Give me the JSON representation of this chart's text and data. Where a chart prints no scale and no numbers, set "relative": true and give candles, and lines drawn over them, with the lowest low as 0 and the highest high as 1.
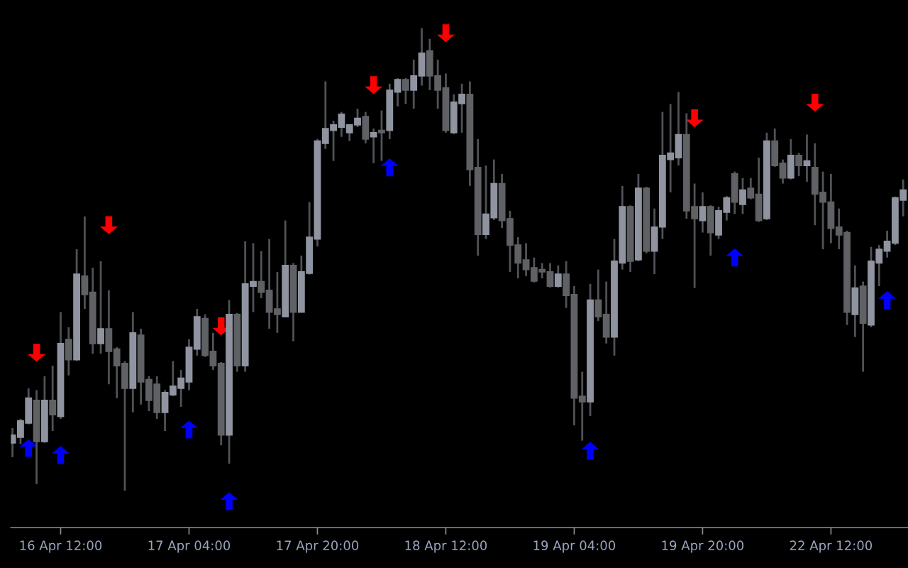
{
  "chart_data": {
    "type": "candlestick",
    "relative": true,
    "tick_labels": "x",
    "categories": [
      null,
      null,
      null,
      null,
      null,
      null,
      "16 Apr 12:00",
      null,
      null,
      null,
      null,
      null,
      null,
      null,
      null,
      null,
      null,
      null,
      null,
      null,
      null,
      null,
      "17 Apr 04:00",
      null,
      null,
      null,
      null,
      null,
      null,
      null,
      null,
      null,
      null,
      null,
      null,
      null,
      null,
      null,
      "17 Apr 20:00",
      null,
      null,
      null,
      null,
      null,
      null,
      null,
      null,
      null,
      null,
      null,
      null,
      null,
      null,
      null,
      "18 Apr 12:00",
      null,
      null,
      null,
      null,
      null,
      null,
      null,
      null,
      null,
      null,
      null,
      null,
      null,
      null,
      null,
      "19 Apr 04:00",
      null,
      null,
      null,
      null,
      null,
      null,
      null,
      null,
      null,
      null,
      null,
      null,
      null,
      null,
      null,
      "19 Apr 20:00",
      null,
      null,
      null,
      null,
      null,
      null,
      null,
      null,
      null,
      null,
      null,
      null,
      null,
      null,
      null,
      "22 Apr 12:00",
      null,
      null,
      null,
      null,
      null,
      null,
      null,
      null,
      null
    ],
    "series": [
      {
        "type": "candlestick",
        "ohlc": [
          [
            0.103,
            0.135,
            0.072,
            0.12
          ],
          [
            0.115,
            0.155,
            0.101,
            0.151
          ],
          [
            0.146,
            0.221,
            0.143,
            0.2
          ],
          [
            0.195,
            0.217,
            0.014,
            0.106
          ],
          [
            0.106,
            0.247,
            0.103,
            0.195
          ],
          [
            0.195,
            0.27,
            0.129,
            0.164
          ],
          [
            0.16,
            0.386,
            0.155,
            0.318
          ],
          [
            0.327,
            0.353,
            0.249,
            0.283
          ],
          [
            0.283,
            0.522,
            0.28,
            0.468
          ],
          [
            0.464,
            0.593,
            0.393,
            0.424
          ],
          [
            0.429,
            0.482,
            0.296,
            0.318
          ],
          [
            0.318,
            0.496,
            0.296,
            0.35
          ],
          [
            0.35,
            0.433,
            0.23,
            0.301
          ],
          [
            0.306,
            0.31,
            0.2,
            0.27
          ],
          [
            0.275,
            0.28,
            0.0,
            0.221
          ],
          [
            0.221,
            0.386,
            0.169,
            0.341
          ],
          [
            0.336,
            0.35,
            0.186,
            0.235
          ],
          [
            0.24,
            0.247,
            0.172,
            0.195
          ],
          [
            0.23,
            0.247,
            0.155,
            0.169
          ],
          [
            0.169,
            0.217,
            0.129,
            0.212
          ],
          [
            0.207,
            0.28,
            0.204,
            0.226
          ],
          [
            0.221,
            0.261,
            0.181,
            0.243
          ],
          [
            0.235,
            0.327,
            0.217,
            0.31
          ],
          [
            0.306,
            0.393,
            0.292,
            0.376
          ],
          [
            0.372,
            0.381,
            0.289,
            0.292
          ],
          [
            0.301,
            0.341,
            0.261,
            0.27
          ],
          [
            0.275,
            0.278,
            0.098,
            0.12
          ],
          [
            0.12,
            0.412,
            0.058,
            0.381
          ],
          [
            0.381,
            0.384,
            0.257,
            0.27
          ],
          [
            0.27,
            0.539,
            0.257,
            0.447
          ],
          [
            0.442,
            0.535,
            0.386,
            0.452
          ],
          [
            0.452,
            0.518,
            0.416,
            0.429
          ],
          [
            0.433,
            0.544,
            0.35,
            0.386
          ],
          [
            0.393,
            0.473,
            0.341,
            0.381
          ],
          [
            0.376,
            0.584,
            0.376,
            0.487
          ],
          [
            0.487,
            0.492,
            0.323,
            0.386
          ],
          [
            0.386,
            0.508,
            0.386,
            0.473
          ],
          [
            0.47,
            0.624,
            0.467,
            0.548
          ],
          [
            0.544,
            0.76,
            0.528,
            0.756
          ],
          [
            0.751,
            0.885,
            0.739,
            0.783
          ],
          [
            0.779,
            0.8,
            0.713,
            0.791
          ],
          [
            0.786,
            0.819,
            0.765,
            0.814
          ],
          [
            0.774,
            0.791,
            0.756,
            0.791
          ],
          [
            0.791,
            0.826,
            0.786,
            0.805
          ],
          [
            0.809,
            0.819,
            0.751,
            0.76
          ],
          [
            0.765,
            0.783,
            0.708,
            0.774
          ],
          [
            0.779,
            0.822,
            0.713,
            0.774
          ],
          [
            0.779,
            0.88,
            0.76,
            0.866
          ],
          [
            0.862,
            0.892,
            0.831,
            0.889
          ],
          [
            0.889,
            0.892,
            0.836,
            0.866
          ],
          [
            0.866,
            0.932,
            0.826,
            0.897
          ],
          [
            0.897,
            1.0,
            0.876,
            0.946
          ],
          [
            0.951,
            0.977,
            0.866,
            0.897
          ],
          [
            0.897,
            0.932,
            0.826,
            0.866
          ],
          [
            0.871,
            0.902,
            0.774,
            0.779
          ],
          [
            0.774,
            0.857,
            0.771,
            0.84
          ],
          [
            0.837,
            0.88,
            0.774,
            0.857
          ],
          [
            0.857,
            0.885,
            0.659,
            0.694
          ],
          [
            0.699,
            0.76,
            0.508,
            0.554
          ],
          [
            0.554,
            0.703,
            0.544,
            0.598
          ],
          [
            0.59,
            0.716,
            0.585,
            0.664
          ],
          [
            0.664,
            0.685,
            0.568,
            0.584
          ],
          [
            0.588,
            0.605,
            0.473,
            0.531
          ],
          [
            0.531,
            0.548,
            0.459,
            0.492
          ],
          [
            0.499,
            0.535,
            0.464,
            0.478
          ],
          [
            0.482,
            0.504,
            0.45,
            0.453
          ],
          [
            0.478,
            0.492,
            0.459,
            0.473
          ],
          [
            0.473,
            0.492,
            0.439,
            0.442
          ],
          [
            0.442,
            0.487,
            0.439,
            0.468
          ],
          [
            0.468,
            0.496,
            0.395,
            0.422
          ],
          [
            0.424,
            0.442,
            0.141,
            0.2
          ],
          [
            0.204,
            0.257,
            0.108,
            0.192
          ],
          [
            0.192,
            0.447,
            0.161,
            0.412
          ],
          [
            0.412,
            0.478,
            0.367,
            0.376
          ],
          [
            0.381,
            0.452,
            0.318,
            0.332
          ],
          [
            0.332,
            0.544,
            0.292,
            0.496
          ],
          [
            0.492,
            0.659,
            0.478,
            0.614
          ],
          [
            0.614,
            0.617,
            0.473,
            0.496
          ],
          [
            0.499,
            0.685,
            0.496,
            0.654
          ],
          [
            0.654,
            0.657,
            0.513,
            0.518
          ],
          [
            0.518,
            0.61,
            0.468,
            0.57
          ],
          [
            0.57,
            0.819,
            0.544,
            0.725
          ],
          [
            0.716,
            0.836,
            0.645,
            0.73
          ],
          [
            0.72,
            0.862,
            0.703,
            0.77
          ],
          [
            0.77,
            0.816,
            0.588,
            0.605
          ],
          [
            0.614,
            0.664,
            0.438,
            0.588
          ],
          [
            0.584,
            0.645,
            0.558,
            0.614
          ],
          [
            0.614,
            0.617,
            0.508,
            0.558
          ],
          [
            0.553,
            0.614,
            0.544,
            0.605
          ],
          [
            0.602,
            0.637,
            0.584,
            0.633
          ],
          [
            0.685,
            0.69,
            0.598,
            0.624
          ],
          [
            0.619,
            0.676,
            0.598,
            0.65
          ],
          [
            0.654,
            0.676,
            0.63,
            0.633
          ],
          [
            0.641,
            0.72,
            0.581,
            0.584
          ],
          [
            0.588,
            0.774,
            0.585,
            0.756
          ],
          [
            0.756,
            0.783,
            0.7,
            0.703
          ],
          [
            0.708,
            0.716,
            0.664,
            0.676
          ],
          [
            0.676,
            0.76,
            0.673,
            0.725
          ],
          [
            0.725,
            0.73,
            0.68,
            0.703
          ],
          [
            0.703,
            0.77,
            0.668,
            0.713
          ],
          [
            0.699,
            0.751,
            0.574,
            0.641
          ],
          [
            0.645,
            0.69,
            0.522,
            0.624
          ],
          [
            0.624,
            0.685,
            0.535,
            0.567
          ],
          [
            0.57,
            0.61,
            0.522,
            0.553
          ],
          [
            0.558,
            0.562,
            0.358,
            0.386
          ],
          [
            0.381,
            0.487,
            0.332,
            0.438
          ],
          [
            0.442,
            0.452,
            0.257,
            0.362
          ],
          [
            0.358,
            0.527,
            0.353,
            0.496
          ],
          [
            0.492,
            0.531,
            0.442,
            0.522
          ],
          [
            0.518,
            0.562,
            0.504,
            0.539
          ],
          [
            0.535,
            0.636,
            0.531,
            0.633
          ],
          [
            0.628,
            0.673,
            0.593,
            0.65
          ]
        ],
        "colors": [
          "#8f94a0",
          "#8f94a0",
          "#8f94a0",
          "#5f6165",
          "#8f94a0",
          "#5f6165",
          "#8f94a0",
          "#5f6165",
          "#8f94a0",
          "#5f6165",
          "#5f6165",
          "#8f94a0",
          "#5f6165",
          "#5f6165",
          "#5f6165",
          "#8f94a0",
          "#5f6165",
          "#5f6165",
          "#5f6165",
          "#8f94a0",
          "#8f94a0",
          "#8f94a0",
          "#8f94a0",
          "#8f94a0",
          "#5f6165",
          "#5f6165",
          "#5f6165",
          "#8f94a0",
          "#5f6165",
          "#8f94a0",
          "#8f94a0",
          "#5f6165",
          "#5f6165",
          "#5f6165",
          "#8f94a0",
          "#5f6165",
          "#8f94a0",
          "#8f94a0",
          "#8f94a0",
          "#8f94a0",
          "#8f94a0",
          "#8f94a0",
          "#8f94a0",
          "#8f94a0",
          "#5f6165",
          "#8f94a0",
          "#5f6165",
          "#8f94a0",
          "#8f94a0",
          "#5f6165",
          "#8f94a0",
          "#8f94a0",
          "#5f6165",
          "#5f6165",
          "#5f6165",
          "#8f94a0",
          "#8f94a0",
          "#5f6165",
          "#5f6165",
          "#8f94a0",
          "#8f94a0",
          "#5f6165",
          "#5f6165",
          "#5f6165",
          "#5f6165",
          "#5f6165",
          "#5f6165",
          "#5f6165",
          "#8f94a0",
          "#5f6165",
          "#5f6165",
          "#5f6165",
          "#8f94a0",
          "#5f6165",
          "#5f6165",
          "#8f94a0",
          "#8f94a0",
          "#5f6165",
          "#8f94a0",
          "#5f6165",
          "#8f94a0",
          "#8f94a0",
          "#8f94a0",
          "#8f94a0",
          "#5f6165",
          "#5f6165",
          "#8f94a0",
          "#5f6165",
          "#8f94a0",
          "#8f94a0",
          "#5f6165",
          "#8f94a0",
          "#5f6165",
          "#5f6165",
          "#8f94a0",
          "#5f6165",
          "#5f6165",
          "#8f94a0",
          "#5f6165",
          "#8f94a0",
          "#5f6165",
          "#5f6165",
          "#5f6165",
          "#5f6165",
          "#5f6165",
          "#8f94a0",
          "#5f6165",
          "#8f94a0",
          "#8f94a0",
          "#8f94a0",
          "#8f94a0",
          "#8f94a0"
        ]
      },
      {
        "type": "scatter",
        "color": "#ff0000",
        "marker": "triangle-down",
        "values": [
          null,
          null,
          null,
          0.298,
          null,
          null,
          null,
          null,
          null,
          null,
          null,
          null,
          0.574,
          null,
          null,
          null,
          null,
          null,
          null,
          null,
          null,
          null,
          null,
          null,
          null,
          null,
          0.355,
          null,
          null,
          null,
          null,
          null,
          null,
          null,
          null,
          null,
          null,
          null,
          null,
          null,
          null,
          null,
          null,
          null,
          null,
          0.877,
          null,
          null,
          null,
          null,
          null,
          null,
          null,
          null,
          0.989,
          null,
          null,
          null,
          null,
          null,
          null,
          null,
          null,
          null,
          null,
          null,
          null,
          null,
          null,
          null,
          null,
          null,
          null,
          null,
          null,
          null,
          null,
          null,
          null,
          null,
          null,
          null,
          null,
          null,
          null,
          0.805,
          null,
          null,
          null,
          null,
          null,
          null,
          null,
          null,
          null,
          null,
          null,
          null,
          null,
          null,
          0.839,
          null,
          null,
          null,
          null,
          null,
          null,
          null,
          null,
          null,
          null,
          null
        ]
      },
      {
        "type": "scatter",
        "color": "#0000ff",
        "marker": "triangle",
        "values": [
          null,
          null,
          0.092,
          null,
          null,
          null,
          0.077,
          null,
          null,
          null,
          null,
          null,
          null,
          null,
          null,
          null,
          null,
          null,
          null,
          null,
          null,
          null,
          0.132,
          null,
          null,
          null,
          null,
          -0.023,
          null,
          null,
          null,
          null,
          null,
          null,
          null,
          null,
          null,
          null,
          null,
          null,
          null,
          null,
          null,
          null,
          null,
          null,
          null,
          0.699,
          null,
          null,
          null,
          null,
          null,
          null,
          null,
          null,
          null,
          null,
          null,
          null,
          null,
          null,
          null,
          null,
          null,
          null,
          null,
          null,
          null,
          null,
          null,
          null,
          0.086,
          null,
          null,
          null,
          null,
          null,
          null,
          null,
          null,
          null,
          null,
          null,
          null,
          null,
          null,
          null,
          null,
          null,
          0.504,
          null,
          null,
          null,
          null,
          null,
          null,
          null,
          null,
          null,
          null,
          null,
          null,
          null,
          null,
          null,
          null,
          null,
          null,
          0.412,
          null,
          null
        ]
      }
    ]
  }
}
